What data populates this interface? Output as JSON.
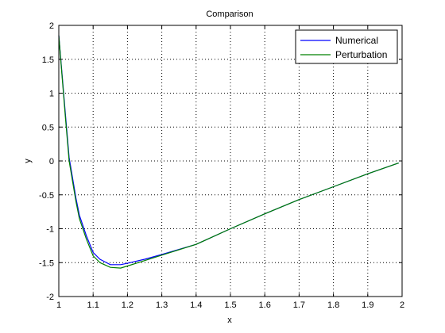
{
  "chart_data": {
    "type": "line",
    "title": "Comparison",
    "xlabel": "x",
    "ylabel": "y",
    "xlim": [
      1,
      2
    ],
    "ylim": [
      -2,
      2
    ],
    "xticks": [
      1,
      1.1,
      1.2,
      1.3,
      1.4,
      1.5,
      1.6,
      1.7,
      1.8,
      1.9,
      2
    ],
    "yticks": [
      -2,
      -1.5,
      -1,
      -0.5,
      0,
      0.5,
      1,
      1.5,
      2
    ],
    "grid": true,
    "legend_position": "top-right",
    "series": [
      {
        "name": "Numerical",
        "color": "#0000ff",
        "x": [
          1.0,
          1.01,
          1.02,
          1.03,
          1.04,
          1.05,
          1.06,
          1.08,
          1.1,
          1.12,
          1.15,
          1.18,
          1.2,
          1.25,
          1.3,
          1.4,
          1.5,
          1.6,
          1.7,
          1.8,
          1.9,
          1.99
        ],
        "y": [
          1.85,
          1.25,
          0.65,
          0.05,
          -0.25,
          -0.55,
          -0.8,
          -1.1,
          -1.35,
          -1.45,
          -1.53,
          -1.53,
          -1.51,
          -1.45,
          -1.38,
          -1.23,
          -1.0,
          -0.78,
          -0.57,
          -0.38,
          -0.19,
          -0.03
        ]
      },
      {
        "name": "Perturbation",
        "color": "#008000",
        "x": [
          1.0,
          1.01,
          1.02,
          1.03,
          1.04,
          1.05,
          1.06,
          1.08,
          1.1,
          1.12,
          1.15,
          1.18,
          1.2,
          1.25,
          1.3,
          1.4,
          1.5,
          1.6,
          1.7,
          1.8,
          1.9,
          1.99
        ],
        "y": [
          1.85,
          1.22,
          0.6,
          0.0,
          -0.3,
          -0.6,
          -0.85,
          -1.15,
          -1.4,
          -1.5,
          -1.57,
          -1.58,
          -1.55,
          -1.47,
          -1.39,
          -1.23,
          -1.0,
          -0.78,
          -0.57,
          -0.38,
          -0.19,
          -0.03
        ]
      }
    ]
  }
}
